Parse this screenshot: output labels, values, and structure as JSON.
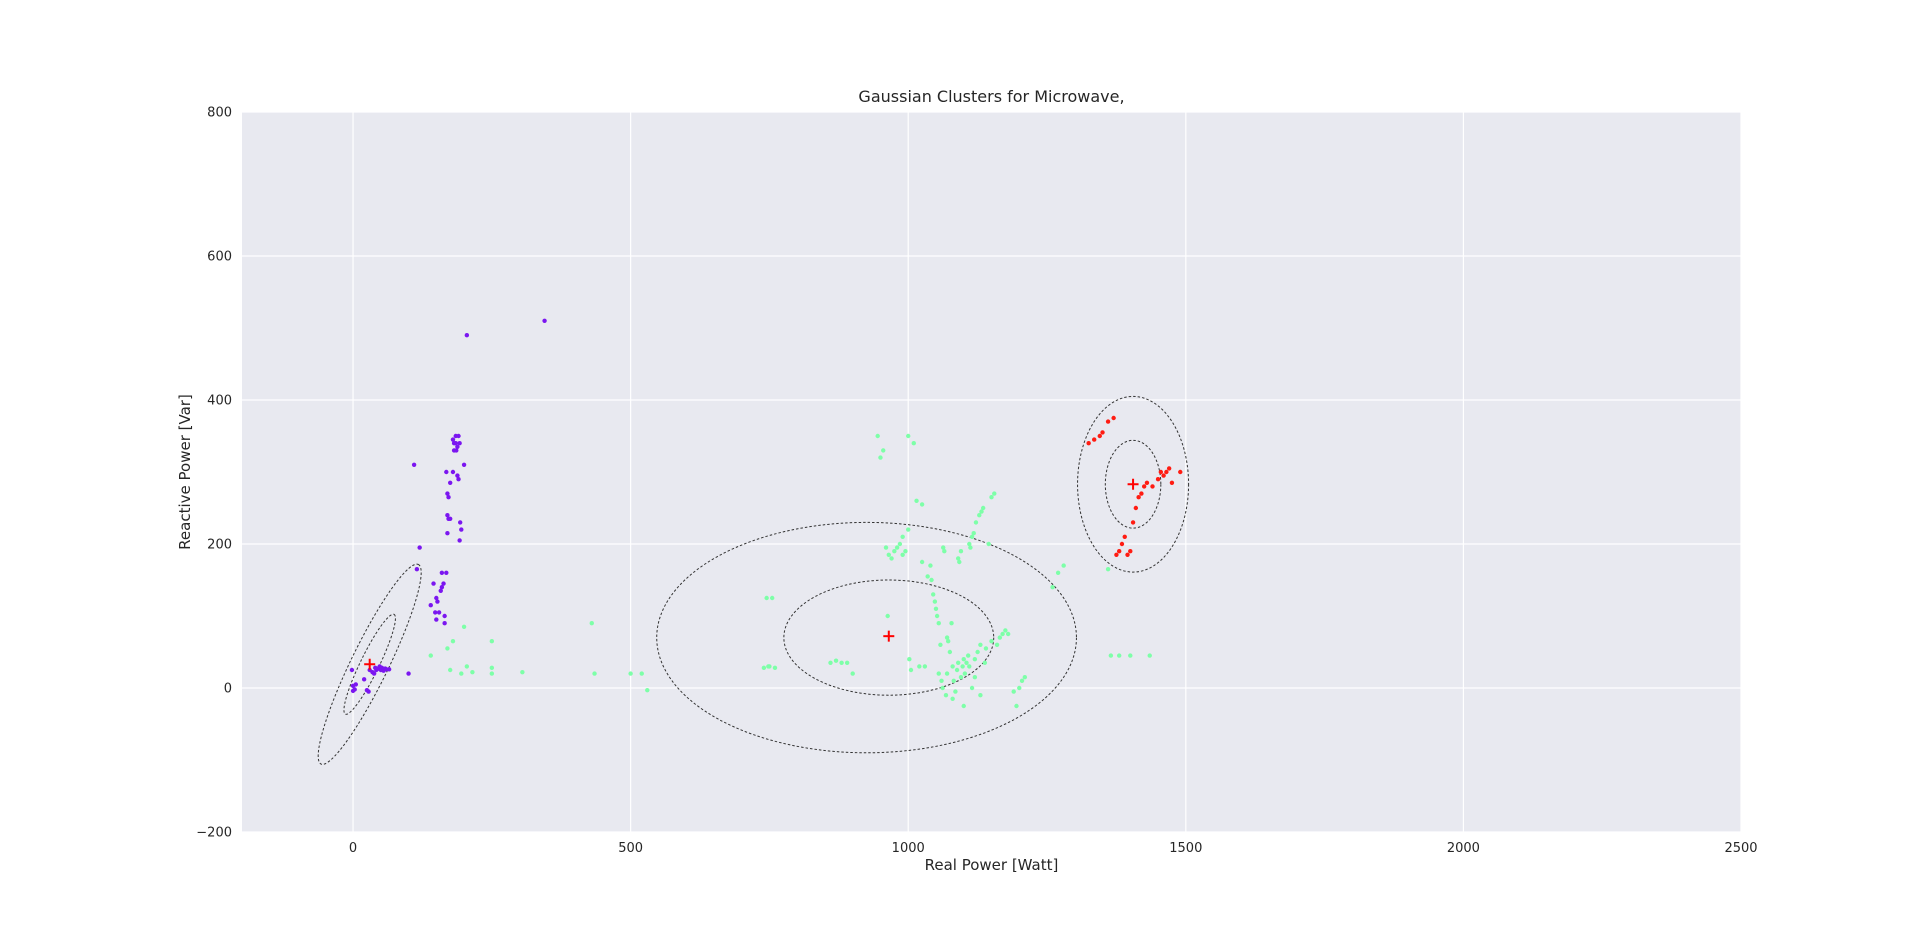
{
  "chart_data": {
    "type": "scatter",
    "title": "Gaussian Clusters for Microwave,",
    "xlabel": "Real Power [Watt]",
    "ylabel": "Reactive Power [Var]",
    "xlim": [
      -200,
      2500
    ],
    "ylim": [
      -200,
      800
    ],
    "xticks": [
      0,
      500,
      1000,
      1500,
      2000,
      2500
    ],
    "yticks": [
      -200,
      0,
      200,
      400,
      600,
      800
    ],
    "grid": true,
    "colors": {
      "background": "#e8e9f0",
      "grid": "#ffffff",
      "centers": "#ff0000",
      "ellipse": "#333333"
    },
    "series": [
      {
        "color": "#7b16f0",
        "points": [
          [
            -2,
            25
          ],
          [
            0,
            3
          ],
          [
            3,
            -2
          ],
          [
            5,
            5
          ],
          [
            0,
            -4
          ],
          [
            20,
            12
          ],
          [
            25,
            -3
          ],
          [
            28,
            -5
          ],
          [
            30,
            25
          ],
          [
            35,
            22
          ],
          [
            38,
            20
          ],
          [
            40,
            28
          ],
          [
            42,
            25
          ],
          [
            45,
            27
          ],
          [
            48,
            30
          ],
          [
            50,
            25
          ],
          [
            52,
            28
          ],
          [
            55,
            24
          ],
          [
            58,
            27
          ],
          [
            60,
            26
          ],
          [
            65,
            26
          ],
          [
            100,
            20
          ],
          [
            110,
            310
          ],
          [
            115,
            165
          ],
          [
            120,
            195
          ],
          [
            140,
            115
          ],
          [
            145,
            145
          ],
          [
            148,
            105
          ],
          [
            150,
            95
          ],
          [
            150,
            125
          ],
          [
            152,
            120
          ],
          [
            155,
            105
          ],
          [
            158,
            135
          ],
          [
            160,
            160
          ],
          [
            160,
            140
          ],
          [
            163,
            145
          ],
          [
            165,
            100
          ],
          [
            165,
            90
          ],
          [
            168,
            160
          ],
          [
            168,
            300
          ],
          [
            170,
            215
          ],
          [
            170,
            240
          ],
          [
            170,
            270
          ],
          [
            172,
            265
          ],
          [
            172,
            235
          ],
          [
            175,
            235
          ],
          [
            175,
            285
          ],
          [
            180,
            300
          ],
          [
            180,
            345
          ],
          [
            182,
            340
          ],
          [
            182,
            330
          ],
          [
            185,
            340
          ],
          [
            185,
            350
          ],
          [
            186,
            330
          ],
          [
            188,
            335
          ],
          [
            188,
            295
          ],
          [
            190,
            290
          ],
          [
            190,
            350
          ],
          [
            192,
            340
          ],
          [
            192,
            205
          ],
          [
            193,
            230
          ],
          [
            195,
            220
          ],
          [
            200,
            310
          ],
          [
            205,
            490
          ],
          [
            345,
            510
          ]
        ]
      },
      {
        "color": "#7dffa8",
        "points": [
          [
            140,
            45
          ],
          [
            170,
            55
          ],
          [
            175,
            25
          ],
          [
            180,
            65
          ],
          [
            195,
            20
          ],
          [
            200,
            85
          ],
          [
            205,
            30
          ],
          [
            215,
            22
          ],
          [
            250,
            65
          ],
          [
            250,
            20
          ],
          [
            250,
            28
          ],
          [
            305,
            22
          ],
          [
            430,
            90
          ],
          [
            435,
            20
          ],
          [
            500,
            20
          ],
          [
            520,
            20
          ],
          [
            530,
            -3
          ],
          [
            740,
            28
          ],
          [
            745,
            125
          ],
          [
            748,
            30
          ],
          [
            750,
            30
          ],
          [
            755,
            125
          ],
          [
            760,
            28
          ],
          [
            860,
            35
          ],
          [
            870,
            38
          ],
          [
            880,
            35
          ],
          [
            890,
            35
          ],
          [
            900,
            20
          ],
          [
            945,
            350
          ],
          [
            950,
            320
          ],
          [
            955,
            330
          ],
          [
            960,
            195
          ],
          [
            963,
            100
          ],
          [
            965,
            185
          ],
          [
            970,
            180
          ],
          [
            975,
            190
          ],
          [
            980,
            195
          ],
          [
            985,
            200
          ],
          [
            990,
            210
          ],
          [
            990,
            185
          ],
          [
            995,
            190
          ],
          [
            1000,
            350
          ],
          [
            1000,
            220
          ],
          [
            1002,
            40
          ],
          [
            1005,
            25
          ],
          [
            1010,
            340
          ],
          [
            1015,
            260
          ],
          [
            1020,
            30
          ],
          [
            1025,
            255
          ],
          [
            1025,
            175
          ],
          [
            1030,
            30
          ],
          [
            1035,
            155
          ],
          [
            1040,
            170
          ],
          [
            1042,
            150
          ],
          [
            1045,
            130
          ],
          [
            1048,
            120
          ],
          [
            1050,
            110
          ],
          [
            1052,
            100
          ],
          [
            1055,
            90
          ],
          [
            1055,
            20
          ],
          [
            1058,
            60
          ],
          [
            1060,
            10
          ],
          [
            1062,
            0
          ],
          [
            1063,
            195
          ],
          [
            1065,
            190
          ],
          [
            1068,
            -10
          ],
          [
            1070,
            20
          ],
          [
            1070,
            70
          ],
          [
            1072,
            65
          ],
          [
            1075,
            50
          ],
          [
            1078,
            90
          ],
          [
            1080,
            30
          ],
          [
            1080,
            -15
          ],
          [
            1082,
            10
          ],
          [
            1085,
            -5
          ],
          [
            1088,
            25
          ],
          [
            1090,
            35
          ],
          [
            1090,
            180
          ],
          [
            1092,
            175
          ],
          [
            1095,
            15
          ],
          [
            1095,
            190
          ],
          [
            1098,
            30
          ],
          [
            1100,
            40
          ],
          [
            1100,
            -25
          ],
          [
            1102,
            20
          ],
          [
            1105,
            35
          ],
          [
            1108,
            45
          ],
          [
            1110,
            30
          ],
          [
            1110,
            200
          ],
          [
            1112,
            195
          ],
          [
            1115,
            210
          ],
          [
            1115,
            0
          ],
          [
            1118,
            215
          ],
          [
            1120,
            15
          ],
          [
            1120,
            40
          ],
          [
            1122,
            230
          ],
          [
            1125,
            50
          ],
          [
            1128,
            240
          ],
          [
            1130,
            60
          ],
          [
            1130,
            -10
          ],
          [
            1132,
            245
          ],
          [
            1135,
            250
          ],
          [
            1138,
            35
          ],
          [
            1140,
            55
          ],
          [
            1145,
            200
          ],
          [
            1150,
            65
          ],
          [
            1150,
            265
          ],
          [
            1155,
            270
          ],
          [
            1160,
            60
          ],
          [
            1165,
            70
          ],
          [
            1170,
            75
          ],
          [
            1175,
            80
          ],
          [
            1180,
            75
          ],
          [
            1190,
            -5
          ],
          [
            1195,
            -25
          ],
          [
            1200,
            0
          ],
          [
            1205,
            10
          ],
          [
            1210,
            15
          ],
          [
            1260,
            140
          ],
          [
            1270,
            160
          ],
          [
            1280,
            170
          ],
          [
            1360,
            165
          ],
          [
            1365,
            45
          ],
          [
            1380,
            45
          ],
          [
            1400,
            45
          ],
          [
            1435,
            45
          ]
        ]
      },
      {
        "color": "#ff1c12",
        "points": [
          [
            1325,
            340
          ],
          [
            1335,
            345
          ],
          [
            1345,
            350
          ],
          [
            1350,
            355
          ],
          [
            1360,
            370
          ],
          [
            1370,
            375
          ],
          [
            1375,
            185
          ],
          [
            1380,
            190
          ],
          [
            1385,
            200
          ],
          [
            1390,
            210
          ],
          [
            1395,
            185
          ],
          [
            1400,
            190
          ],
          [
            1405,
            230
          ],
          [
            1410,
            250
          ],
          [
            1415,
            265
          ],
          [
            1420,
            270
          ],
          [
            1425,
            280
          ],
          [
            1430,
            285
          ],
          [
            1440,
            280
          ],
          [
            1450,
            290
          ],
          [
            1455,
            300
          ],
          [
            1460,
            295
          ],
          [
            1465,
            300
          ],
          [
            1470,
            305
          ],
          [
            1475,
            285
          ],
          [
            1490,
            300
          ]
        ]
      }
    ],
    "centers": [
      [
        30,
        33
      ],
      [
        965,
        72
      ],
      [
        1405,
        283
      ]
    ],
    "ellipses": [
      {
        "cx": 30,
        "cy": 33,
        "rx": 200,
        "ry": 26,
        "angle_deg": 64
      },
      {
        "cx": 30,
        "cy": 33,
        "rx": 100,
        "ry": 13,
        "angle_deg": 64
      },
      {
        "cx": 925,
        "cy": 70,
        "rx": 378,
        "ry": 160,
        "angle_deg": 0
      },
      {
        "cx": 965,
        "cy": 70,
        "rx": 189,
        "ry": 80,
        "angle_deg": 0
      },
      {
        "cx": 1405,
        "cy": 283,
        "rx": 100,
        "ry": 122,
        "angle_deg": 0
      },
      {
        "cx": 1405,
        "cy": 283,
        "rx": 50,
        "ry": 61,
        "angle_deg": 0
      }
    ]
  }
}
